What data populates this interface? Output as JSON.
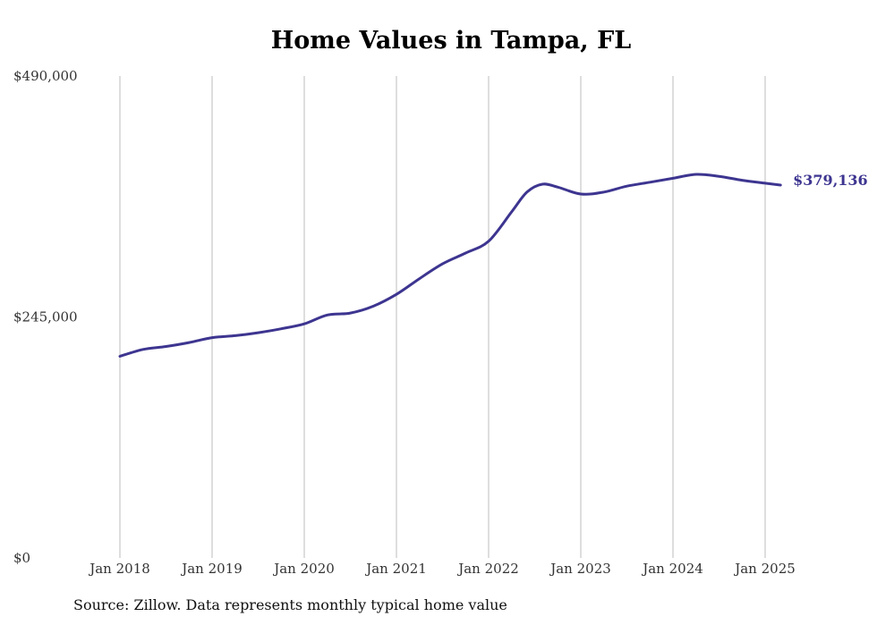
{
  "chart_data": {
    "type": "line",
    "title": "Home Values in Tampa, FL",
    "xlabel": "",
    "ylabel": "",
    "x_ticks": [
      "Jan 2018",
      "Jan 2019",
      "Jan 2020",
      "Jan 2021",
      "Jan 2022",
      "Jan 2023",
      "Jan 2024",
      "Jan 2025"
    ],
    "y_ticks": [
      "$0",
      "$245,000",
      "$490,000"
    ],
    "ylim": [
      0,
      490000
    ],
    "xlim": [
      "2018-01",
      "2025-03"
    ],
    "grid": "vertical",
    "color": "#3d3590",
    "series": [
      {
        "name": "",
        "points": [
          [
            "2018-01",
            205000
          ],
          [
            "2018-04",
            212000
          ],
          [
            "2018-07",
            215000
          ],
          [
            "2018-10",
            219000
          ],
          [
            "2019-01",
            224000
          ],
          [
            "2019-04",
            226000
          ],
          [
            "2019-07",
            229000
          ],
          [
            "2019-10",
            233000
          ],
          [
            "2020-01",
            238000
          ],
          [
            "2020-04",
            247000
          ],
          [
            "2020-07",
            249000
          ],
          [
            "2020-10",
            256000
          ],
          [
            "2021-01",
            268000
          ],
          [
            "2021-04",
            284000
          ],
          [
            "2021-07",
            299000
          ],
          [
            "2021-10",
            310000
          ],
          [
            "2022-01",
            322000
          ],
          [
            "2022-04",
            352000
          ],
          [
            "2022-06",
            372000
          ],
          [
            "2022-08",
            380000
          ],
          [
            "2022-10",
            377000
          ],
          [
            "2023-01",
            370000
          ],
          [
            "2023-04",
            372000
          ],
          [
            "2023-07",
            378000
          ],
          [
            "2023-10",
            382000
          ],
          [
            "2024-01",
            386000
          ],
          [
            "2024-04",
            390000
          ],
          [
            "2024-07",
            388000
          ],
          [
            "2024-10",
            384000
          ],
          [
            "2025-01",
            381000
          ],
          [
            "2025-03",
            379136
          ]
        ]
      }
    ],
    "end_label": "$379,136"
  },
  "source": "Source: Zillow. Data represents monthly typical home value"
}
